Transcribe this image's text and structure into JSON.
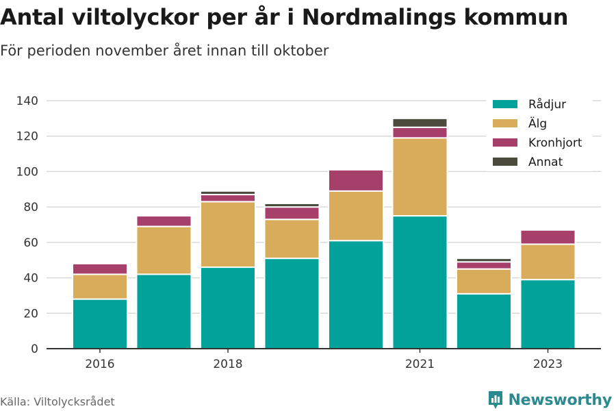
{
  "header": {
    "title": "Antal viltolyckor per år i Nordmalings kommun",
    "subtitle": "För perioden november året innan till oktober"
  },
  "footer": {
    "source": "Källa: Viltolycksrådet",
    "brand": "Newsworthy",
    "brand_icon": "newsworthy-logo-icon"
  },
  "colors": {
    "Rådjur": "#00a29a",
    "Älg": "#d9ac5b",
    "Kronhjort": "#a6406a",
    "Annat": "#4a4a3d",
    "grid": "#d9d9d9",
    "axis": "#333333",
    "brand": "#2b8a8f"
  },
  "chart_data": {
    "type": "bar",
    "stacked": true,
    "categories": [
      "2016",
      "2017",
      "2018",
      "2019",
      "2020",
      "2021",
      "2022",
      "2023"
    ],
    "x_tick_labels": [
      "2016",
      "",
      "2018",
      "",
      "",
      "2021",
      "",
      "2023"
    ],
    "series": [
      {
        "name": "Rådjur",
        "values": [
          28,
          42,
          46,
          51,
          61,
          75,
          31,
          39
        ]
      },
      {
        "name": "Älg",
        "values": [
          14,
          27,
          37,
          22,
          28,
          44,
          14,
          20
        ]
      },
      {
        "name": "Kronhjort",
        "values": [
          6,
          6,
          4,
          7,
          12,
          6,
          4,
          8
        ]
      },
      {
        "name": "Annat",
        "values": [
          0,
          0,
          2,
          2,
          0,
          5,
          2,
          0
        ]
      }
    ],
    "ylim": [
      0,
      140
    ],
    "y_ticks": [
      0,
      20,
      40,
      60,
      80,
      100,
      120,
      140
    ],
    "grid": true,
    "legend": "top-right",
    "title": "Antal viltolyckor per år i Nordmalings kommun",
    "subtitle": "För perioden november året innan till oktober",
    "xlabel": "",
    "ylabel": ""
  }
}
